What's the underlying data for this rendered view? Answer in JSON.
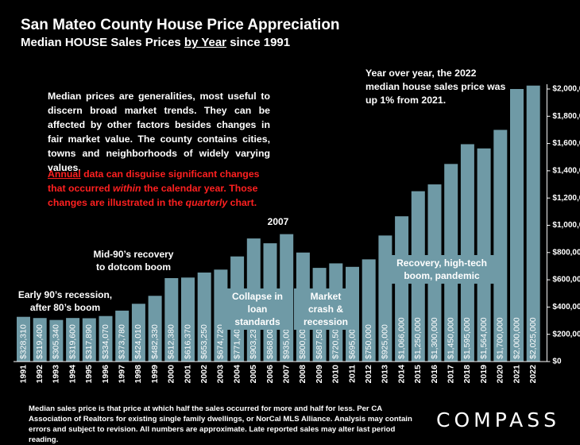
{
  "header": {
    "title": "San Mateo County House Price Appreciation",
    "subtitle_prefix": "Median HOUSE Sales Prices ",
    "subtitle_underlined": "by Year",
    "subtitle_suffix": " since 1991"
  },
  "notes": {
    "general": "Median prices are generalities, most useful to discern broad market trends. They can be affected by other factors besides changes in fair market value. The county contains cities, towns and neighborhoods of widely varying values.",
    "annual_word": "Annual",
    "annual_part1": " data can disguise significant changes that occurred ",
    "annual_within": "within",
    "annual_part2": " the calendar year. Those changes are illustrated in the ",
    "annual_quarterly": "quarterly",
    "annual_part3": " chart.",
    "yoy": "Year over year, the 2022 median house sales price was up 1% from 2021."
  },
  "annotations": {
    "early90s": "Early 90’s recession, after 80’s boom",
    "mid90s": "Mid-90’s recovery to dotcom boom",
    "y2007": "2007",
    "collapse": "Collapse in loan standards",
    "crash": "Market crash & recession",
    "recovery": "Recovery, high-tech boom, pandemic"
  },
  "footer": "Median sales price is that price at which half the sales occurred for more and half for less. Per CA Association of Realtors for existing single family dwellings, or NorCal MLS Alliance. Analysis may contain errors and subject to revision. All numbers are approximate. Late reported sales may alter last period reading.",
  "logo": "COMPASS",
  "colors": {
    "bar": "#6f9aa6",
    "background": "#000000",
    "text": "#ffffff",
    "warning": "#ff2020"
  },
  "chart_data": {
    "type": "bar",
    "title": "San Mateo County House Price Appreciation",
    "categories": [
      "1991",
      "1992",
      "1993",
      "1994",
      "1995",
      "1996",
      "1997",
      "1998",
      "1999",
      "2000",
      "2001",
      "2002",
      "2003",
      "2004",
      "2005",
      "2006",
      "2007",
      "2008",
      "2009",
      "2010",
      "2011",
      "2012",
      "2013",
      "2014",
      "2015",
      "2016",
      "2017",
      "2018",
      "2019",
      "2020",
      "2021",
      "2022"
    ],
    "values": [
      328310,
      319400,
      305340,
      319600,
      317890,
      334070,
      373780,
      424010,
      482330,
      612380,
      616370,
      653250,
      674720,
      771400,
      903230,
      868000,
      935000,
      800000,
      687500,
      720500,
      695000,
      750000,
      925000,
      1066000,
      1250000,
      1300000,
      1450000,
      1595000,
      1564000,
      1700000,
      2000000,
      2025000
    ],
    "labels": [
      "$328,310",
      "$319,400",
      "$305,340",
      "$319,600",
      "$317,890",
      "$334,070",
      "$373,780",
      "$424,010",
      "$482,330",
      "$612,380",
      "$616,370",
      "$653,250",
      "$674,720",
      "$771,400",
      "$903,230",
      "$868,000",
      "$935,000",
      "$800,000",
      "$687,500",
      "$720,500",
      "$695,000",
      "$750,000",
      "$925,000",
      "$1,066,000",
      "$1,250,000",
      "$1,300,000",
      "$1,450,000",
      "$1,595,000",
      "$1,564,000",
      "$1,700,000",
      "$2,000,000",
      "$2,025,000"
    ],
    "ylim": [
      0,
      2000000
    ],
    "yticks": [
      "$0",
      "$200,000",
      "$400,000",
      "$600,000",
      "$800,000",
      "$1,000,000",
      "$1,200,000",
      "$1,400,000",
      "$1,600,000",
      "$1,800,000",
      "$2,000,000"
    ],
    "ytick_values": [
      0,
      200000,
      400000,
      600000,
      800000,
      1000000,
      1200000,
      1400000,
      1600000,
      1800000,
      2000000
    ],
    "grid": false,
    "y_axis_position": "right"
  }
}
